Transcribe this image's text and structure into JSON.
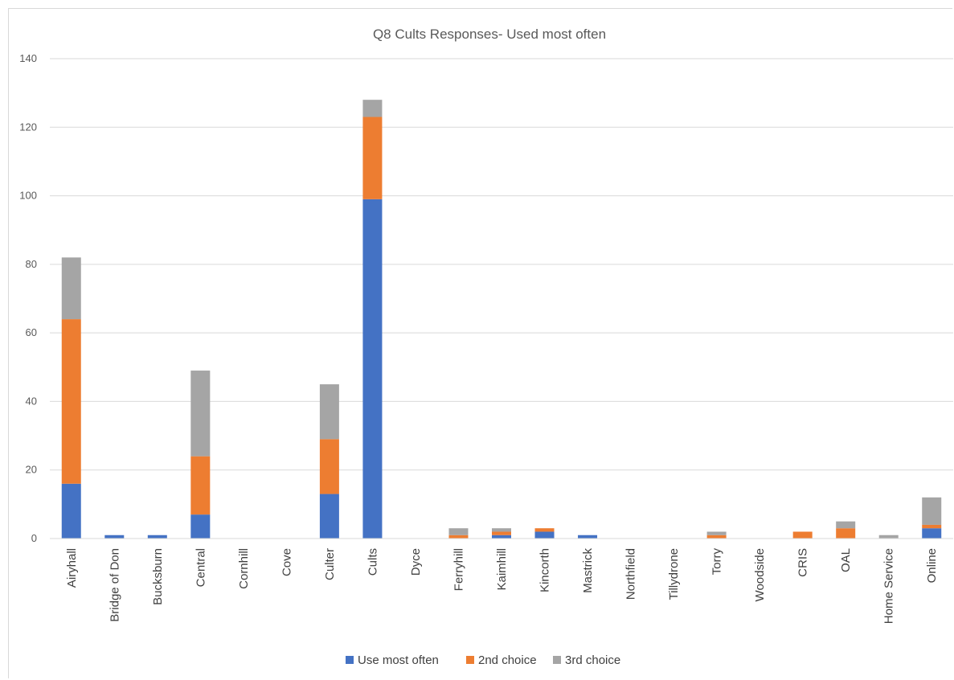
{
  "chart_data": {
    "type": "bar",
    "stacked": true,
    "title": "Q8 Cults Responses- Used most often",
    "xlabel": "",
    "ylabel": "",
    "ylim": [
      0,
      140
    ],
    "yticks": [
      0,
      20,
      40,
      60,
      80,
      100,
      120,
      140
    ],
    "grid": true,
    "legend": "bottom",
    "categories": [
      "Airyhall",
      "Bridge of Don",
      "Bucksburn",
      "Central",
      "Cornhill",
      "Cove",
      "Culter",
      "Cults",
      "Dyce",
      "Ferryhill",
      "Kaimhill",
      "Kincorth",
      "Mastrick",
      "Northfield",
      "Tillydrone",
      "Torry",
      "Woodside",
      "CRIS",
      "OAL",
      "Home Service",
      "Online"
    ],
    "series": [
      {
        "name": "Use most often",
        "color": "#4472c4",
        "values": [
          16,
          1,
          1,
          7,
          0,
          0,
          13,
          99,
          0,
          0,
          1,
          2,
          1,
          0,
          0,
          0,
          0,
          0,
          0,
          0,
          3
        ]
      },
      {
        "name": "2nd choice",
        "color": "#ed7d31",
        "values": [
          48,
          0,
          0,
          17,
          0,
          0,
          16,
          24,
          0,
          1,
          1,
          1,
          0,
          0,
          0,
          1,
          0,
          2,
          3,
          0,
          1
        ]
      },
      {
        "name": "3rd choice",
        "color": "#a5a5a5",
        "values": [
          18,
          0,
          0,
          25,
          0,
          0,
          16,
          5,
          0,
          2,
          1,
          0,
          0,
          0,
          0,
          1,
          0,
          0,
          2,
          1,
          8
        ]
      }
    ]
  }
}
